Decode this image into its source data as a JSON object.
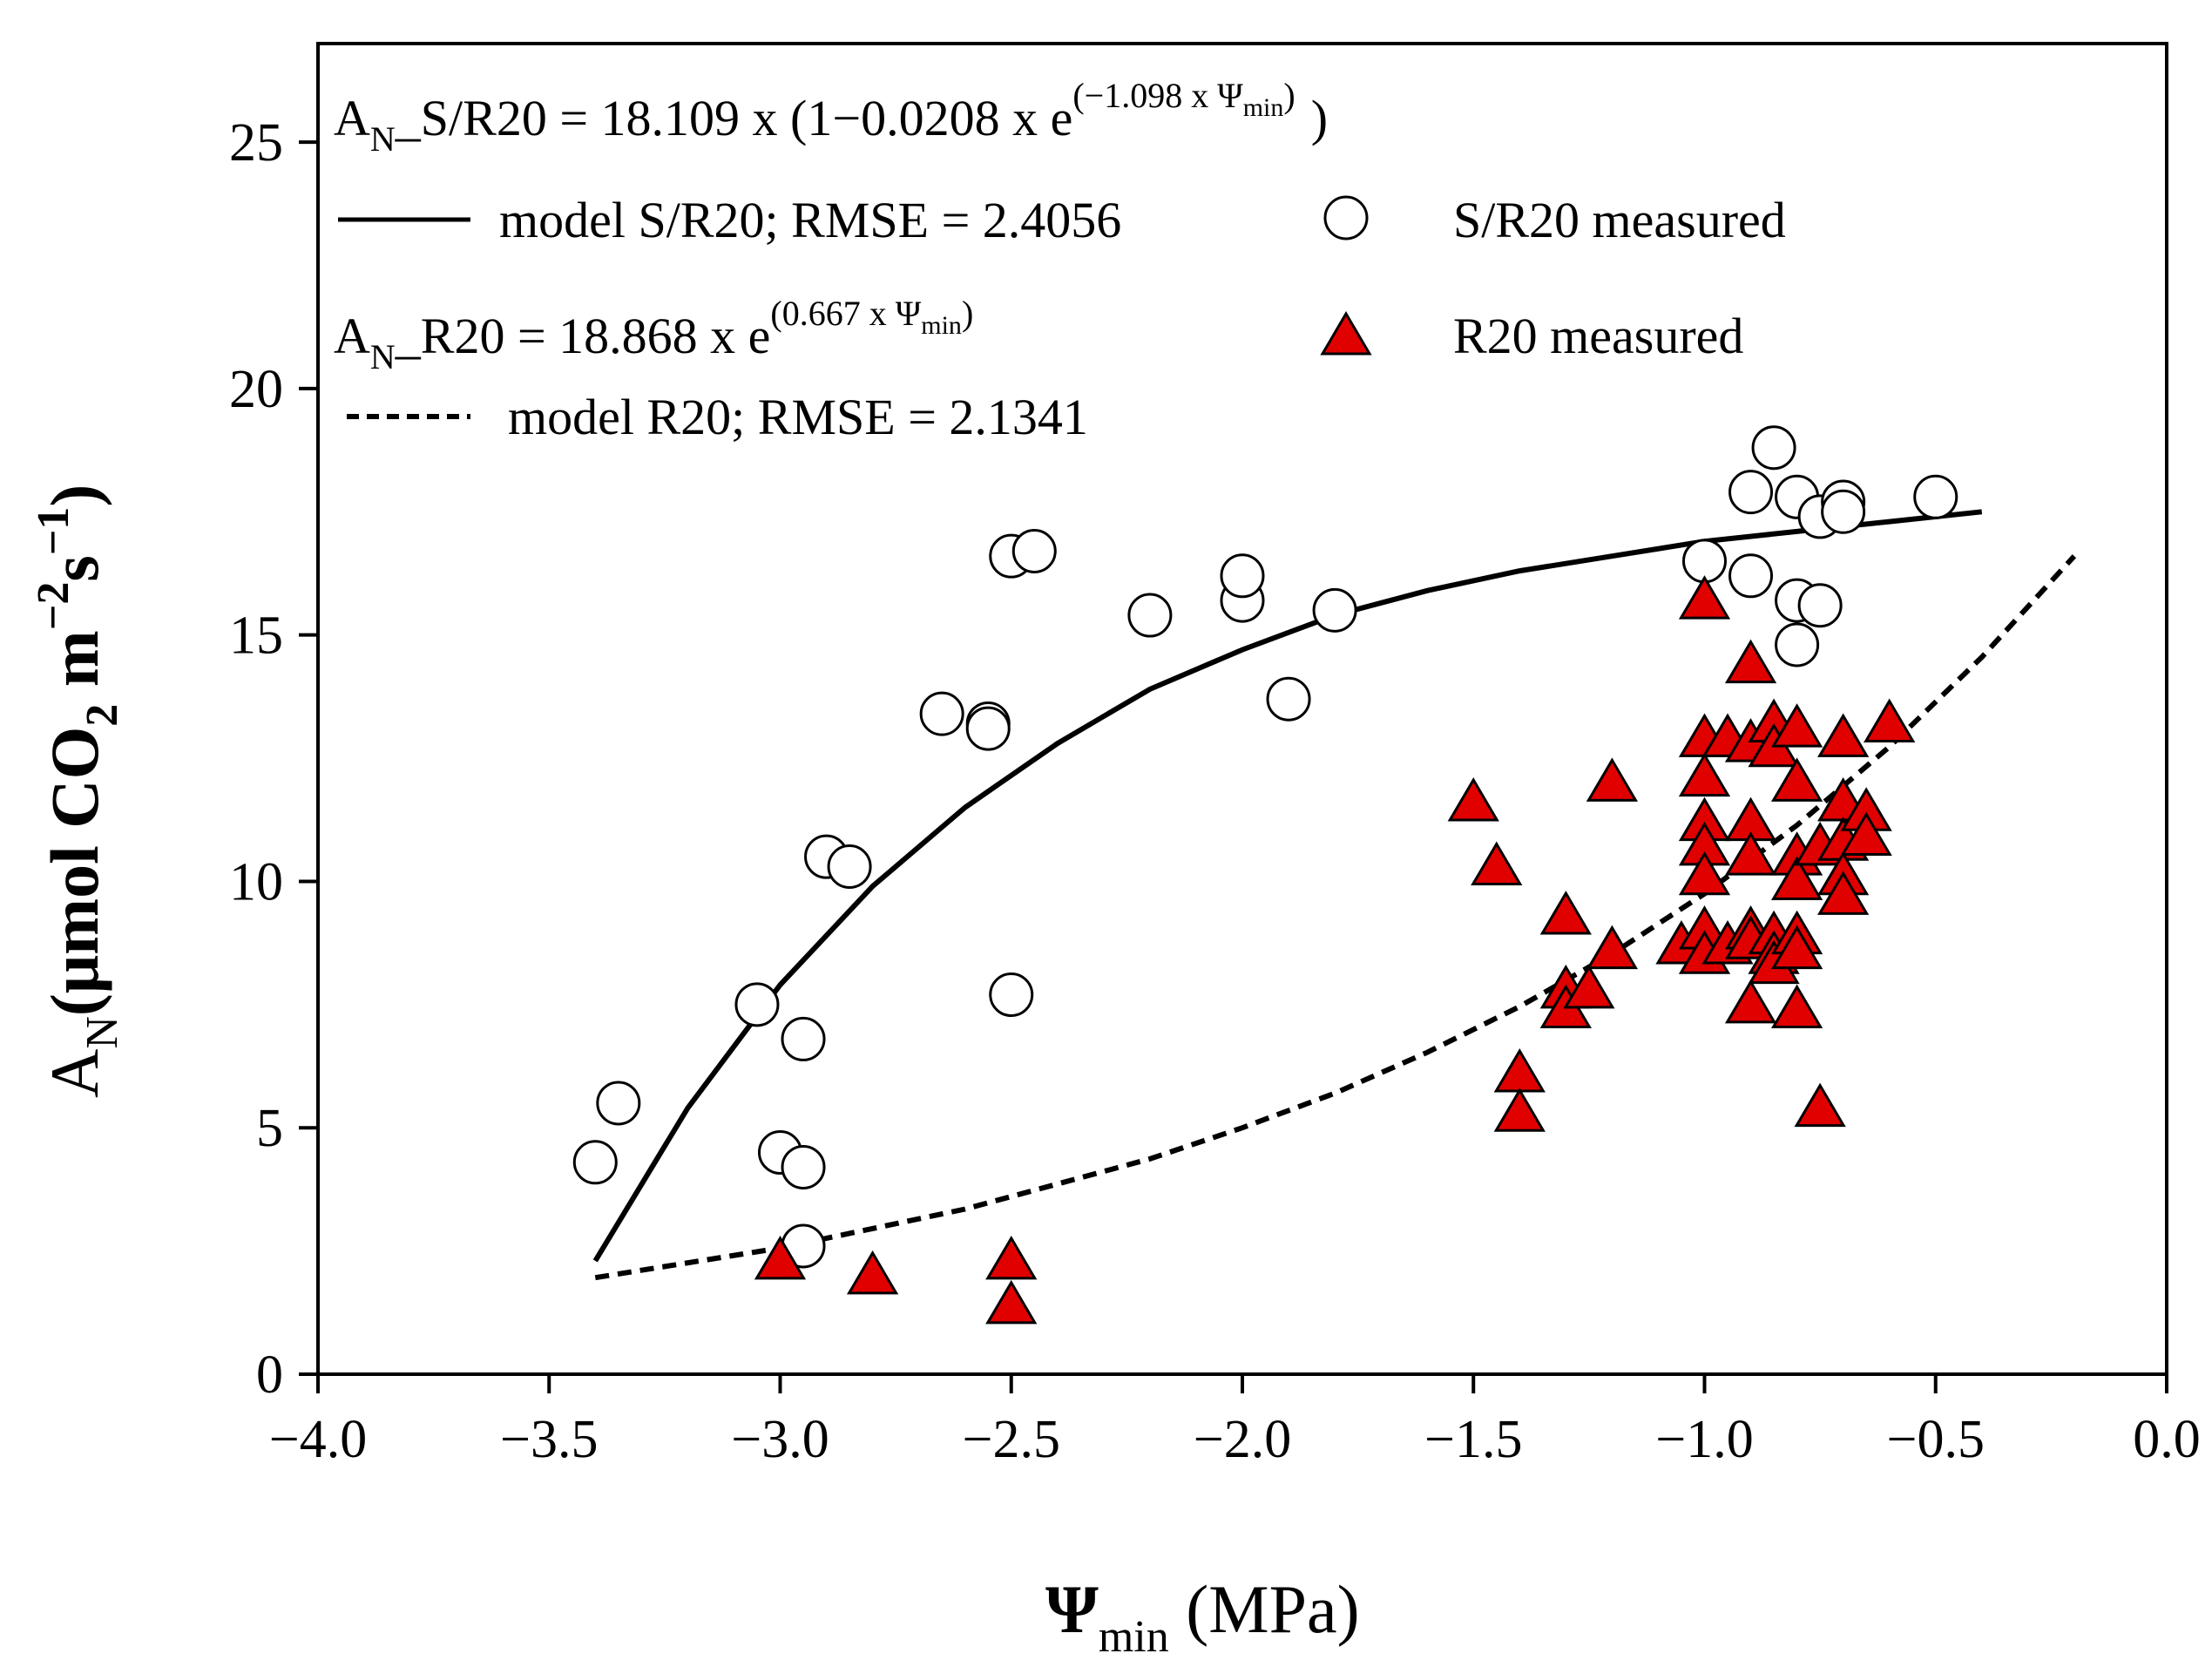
{
  "chart_data": {
    "type": "scatter",
    "xlabel": {
      "main": "Ψ",
      "sub": "min",
      "rest": " (MPa)"
    },
    "ylabel": {
      "main": "A",
      "sub": "N",
      "rest": "(μmol CO",
      "sub2": "2",
      "rest2": " m",
      "sup1": "−2",
      "rest3": "s",
      "sup2": "−1",
      "rest4": ")"
    },
    "xlim": [
      -4.0,
      0.0
    ],
    "ylim": [
      0,
      27
    ],
    "x_ticks": [
      -4.0,
      -3.5,
      -3.0,
      -2.5,
      -2.0,
      -1.5,
      -1.0,
      -0.5,
      0.0
    ],
    "x_tick_labels": [
      "−4.0",
      "−3.5",
      "−3.0",
      "−2.5",
      "−2.0",
      "−1.5",
      "−1.0",
      "−0.5",
      "0.0"
    ],
    "y_ticks": [
      0,
      5,
      10,
      15,
      20,
      25
    ],
    "y_tick_labels": [
      "0",
      "5",
      "10",
      "15",
      "20",
      "25"
    ],
    "grid": false,
    "legend_position": "top-left",
    "equations": {
      "sr20": {
        "pre": "A",
        "sub": "N",
        "mid": "_S/R20 = 18.109 x (1−0.0208 x e",
        "sup": "(−1.098 x Ψ",
        "supsub": "min",
        "supend": ")",
        "post": ")"
      },
      "r20": {
        "pre": "A",
        "sub": "N",
        "mid": "_R20 = 18.868 x e",
        "sup": "(0.667 x Ψ",
        "supsub": "min",
        "supend": ")",
        "post": ""
      }
    },
    "legend": {
      "model_sr20": "model S/R20; RMSE = 2.4056",
      "measured_sr20": "S/R20 measured",
      "measured_r20": "R20 measured",
      "model_r20": "model R20; RMSE = 2.1341"
    },
    "series": [
      {
        "name": "model S/R20; RMSE = 2.4056",
        "kind": "line",
        "style": "solid",
        "color": "#000000",
        "x": [
          -3.4,
          -3.2,
          -3.0,
          -2.8,
          -2.6,
          -2.4,
          -2.2,
          -2.0,
          -1.8,
          -1.6,
          -1.4,
          -1.2,
          -1.0,
          -0.8,
          -0.6,
          -0.4
        ],
        "y": [
          2.3,
          5.4,
          7.9,
          9.9,
          11.5,
          12.8,
          13.9,
          14.7,
          15.4,
          15.9,
          16.3,
          16.6,
          16.9,
          17.1,
          17.3,
          17.5
        ]
      },
      {
        "name": "model R20; RMSE = 2.1341",
        "kind": "line",
        "style": "dashed",
        "color": "#000000",
        "x": [
          -3.4,
          -3.0,
          -2.6,
          -2.2,
          -2.0,
          -1.8,
          -1.6,
          -1.4,
          -1.2,
          -1.0,
          -0.8,
          -0.6,
          -0.4,
          -0.2
        ],
        "y": [
          1.96,
          2.56,
          3.35,
          4.37,
          5.0,
          5.7,
          6.53,
          7.46,
          8.53,
          9.75,
          11.14,
          12.73,
          14.55,
          16.6
        ]
      },
      {
        "name": "S/R20 measured",
        "kind": "points",
        "marker": "circle",
        "color": "#ffffff",
        "x": [
          -3.4,
          -3.35,
          -3.05,
          -3.0,
          -2.95,
          -2.95,
          -2.95,
          -2.9,
          -2.85,
          -2.65,
          -2.55,
          -2.55,
          -2.5,
          -2.5,
          -2.45,
          -2.2,
          -2.0,
          -2.0,
          -1.9,
          -1.8,
          -1.0,
          -0.9,
          -0.9,
          -0.85,
          -0.8,
          -0.8,
          -0.8,
          -0.75,
          -0.75,
          -0.7,
          -0.7,
          -0.5
        ],
        "y": [
          4.3,
          5.5,
          7.5,
          4.5,
          6.8,
          4.2,
          2.6,
          10.5,
          10.3,
          13.4,
          13.2,
          13.1,
          16.6,
          7.7,
          16.7,
          15.4,
          15.7,
          16.2,
          13.7,
          15.5,
          16.5,
          17.9,
          16.2,
          18.8,
          17.8,
          15.7,
          14.8,
          17.4,
          15.6,
          17.7,
          17.5,
          17.8
        ]
      },
      {
        "name": "R20 measured",
        "kind": "points",
        "marker": "triangle",
        "color": "#e00000",
        "x": [
          -3.0,
          -2.8,
          -2.5,
          -2.5,
          -1.5,
          -1.45,
          -1.4,
          -1.4,
          -1.3,
          -1.3,
          -1.3,
          -1.25,
          -1.2,
          -1.2,
          -1.05,
          -1.0,
          -1.0,
          -1.0,
          -1.0,
          -1.0,
          -1.0,
          -1.0,
          -1.0,
          -0.95,
          -0.95,
          -0.9,
          -0.9,
          -0.9,
          -0.9,
          -0.9,
          -0.9,
          -0.9,
          -0.85,
          -0.85,
          -0.85,
          -0.85,
          -0.85,
          -0.8,
          -0.8,
          -0.8,
          -0.8,
          -0.8,
          -0.8,
          -0.8,
          -0.75,
          -0.75,
          -0.7,
          -0.7,
          -0.7,
          -0.7,
          -0.7,
          -0.65,
          -0.65,
          -0.6
        ],
        "y": [
          2.3,
          2.0,
          2.3,
          1.4,
          11.6,
          10.3,
          6.1,
          5.3,
          9.3,
          7.8,
          7.4,
          7.8,
          12.0,
          8.6,
          8.7,
          15.7,
          12.9,
          12.1,
          11.2,
          10.7,
          10.1,
          9.0,
          8.5,
          12.9,
          8.7,
          14.4,
          12.8,
          11.2,
          10.5,
          9.0,
          8.8,
          7.5,
          13.2,
          12.7,
          8.9,
          8.5,
          8.3,
          13.1,
          12.0,
          10.5,
          10.0,
          8.9,
          8.6,
          7.4,
          10.7,
          5.4,
          12.9,
          11.6,
          10.8,
          10.1,
          9.7,
          11.4,
          10.9,
          13.2
        ]
      }
    ]
  }
}
